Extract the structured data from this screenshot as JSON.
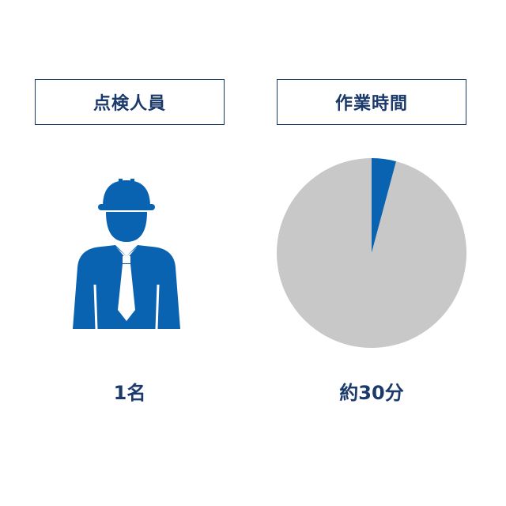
{
  "left_panel": {
    "label": "点検人員",
    "value": "1名",
    "icon": "worker-with-hardhat-icon"
  },
  "right_panel": {
    "label": "作業時間",
    "value": "約30分"
  },
  "colors": {
    "primary": "#0a63b0",
    "text": "#1b3a6b",
    "pie_rest": "#c8c8c8"
  },
  "chart_data": {
    "type": "pie",
    "slices": [
      {
        "value": 30
      },
      {
        "value": 690
      }
    ]
  }
}
